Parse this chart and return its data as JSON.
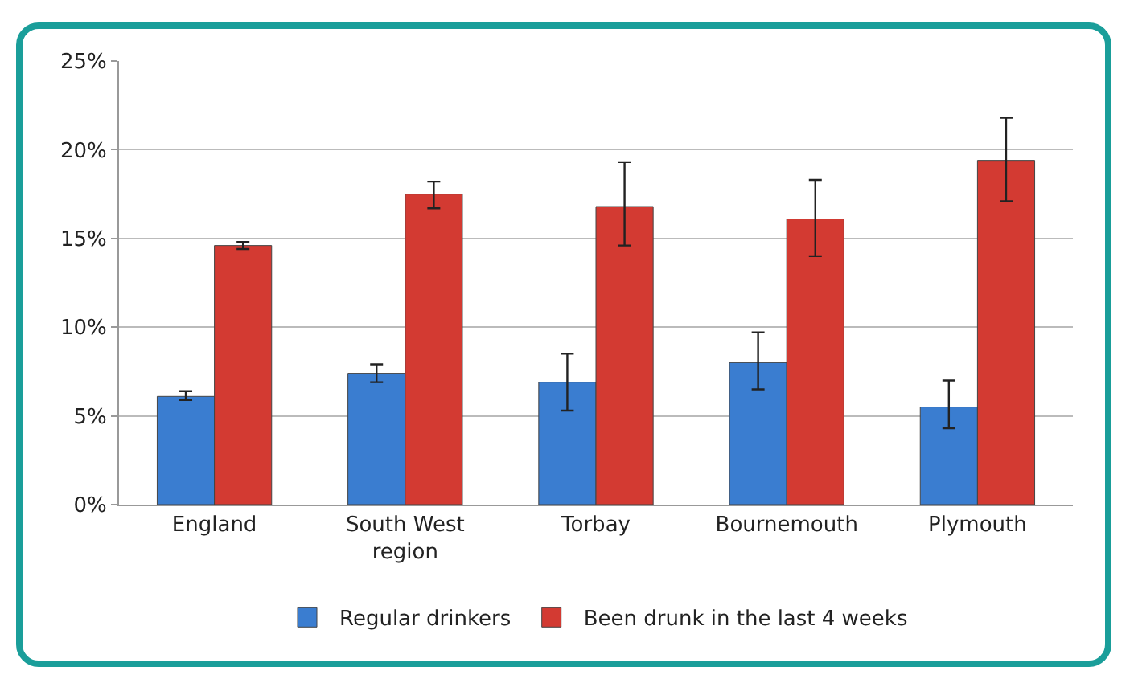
{
  "chart_data": {
    "type": "bar",
    "categories": [
      "England",
      "South West region",
      "Torbay",
      "Bournemouth",
      "Plymouth"
    ],
    "series": [
      {
        "name": "Regular drinkers",
        "color": "#3a7dd0",
        "values": [
          6.1,
          7.4,
          6.9,
          8.0,
          5.5
        ],
        "errors": [
          [
            5.9,
            6.4
          ],
          [
            6.9,
            7.9
          ],
          [
            5.3,
            8.5
          ],
          [
            6.5,
            9.7
          ],
          [
            4.3,
            7.0
          ]
        ]
      },
      {
        "name": "Been drunk in the last 4 weeks",
        "color": "#d33a32",
        "values": [
          14.6,
          17.5,
          16.8,
          16.1,
          19.4
        ],
        "errors": [
          [
            14.4,
            14.8
          ],
          [
            16.7,
            18.2
          ],
          [
            14.6,
            19.3
          ],
          [
            14.0,
            18.3
          ],
          [
            17.1,
            21.8
          ]
        ]
      }
    ],
    "ylim": [
      0,
      25
    ],
    "yticks": [
      {
        "value": 0,
        "label": "0%"
      },
      {
        "value": 5,
        "label": "5%"
      },
      {
        "value": 10,
        "label": "10%"
      },
      {
        "value": 15,
        "label": "15%"
      },
      {
        "value": 20,
        "label": "20%"
      },
      {
        "value": 25,
        "label": "25%"
      }
    ],
    "grid": "y",
    "legend": "bottom"
  }
}
